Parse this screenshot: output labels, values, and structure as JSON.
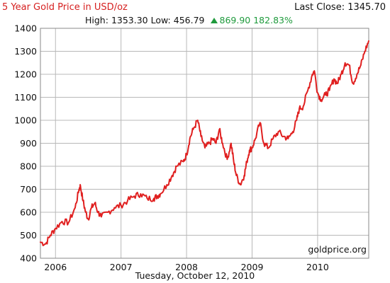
{
  "header": {
    "title": "5 Year Gold Price in USD/oz",
    "last_close_label": "Last Close:",
    "last_close_value": "1345.70",
    "high_label": "High:",
    "high_value": "1353.30",
    "low_label": "Low:",
    "low_value": "456.79",
    "change_value": "869.90",
    "change_percent": "182.83%"
  },
  "footer": {
    "date": "Tuesday, October 12, 2010",
    "watermark": "goldprice.org"
  },
  "colors": {
    "line": "#e02020",
    "title": "#d62020",
    "up": "#1e9a3c",
    "grid": "#b8b8b8"
  },
  "icons": {
    "change": "up-triangle-icon"
  },
  "chart_data": {
    "type": "line",
    "title": "5 Year Gold Price in USD/oz",
    "xlabel": "",
    "ylabel": "",
    "ylim": [
      400,
      1400
    ],
    "xlim": [
      2005.77,
      2010.78
    ],
    "yticks": [
      "400",
      "500",
      "600",
      "700",
      "800",
      "900",
      "1000",
      "1100",
      "1200",
      "1300",
      "1400"
    ],
    "xticks": [
      {
        "label": "2006",
        "x": 2006.0
      },
      {
        "label": "2007",
        "x": 2007.0
      },
      {
        "label": "2008",
        "x": 2008.0
      },
      {
        "label": "2009",
        "x": 2009.0
      },
      {
        "label": "2010",
        "x": 2010.0
      }
    ],
    "grid": true,
    "series": [
      {
        "points": [
          [
            2005.77,
            470
          ],
          [
            2005.85,
            462
          ],
          [
            2005.92,
            500
          ],
          [
            2006.0,
            530
          ],
          [
            2006.1,
            560
          ],
          [
            2006.2,
            555
          ],
          [
            2006.3,
            620
          ],
          [
            2006.36,
            700
          ],
          [
            2006.38,
            715
          ],
          [
            2006.42,
            650
          ],
          [
            2006.46,
            600
          ],
          [
            2006.5,
            570
          ],
          [
            2006.55,
            620
          ],
          [
            2006.6,
            640
          ],
          [
            2006.65,
            600
          ],
          [
            2006.7,
            580
          ],
          [
            2006.8,
            600
          ],
          [
            2006.9,
            620
          ],
          [
            2007.0,
            630
          ],
          [
            2007.1,
            650
          ],
          [
            2007.2,
            670
          ],
          [
            2007.3,
            680
          ],
          [
            2007.4,
            660
          ],
          [
            2007.5,
            660
          ],
          [
            2007.55,
            670
          ],
          [
            2007.6,
            680
          ],
          [
            2007.7,
            720
          ],
          [
            2007.78,
            760
          ],
          [
            2007.85,
            800
          ],
          [
            2007.95,
            820
          ],
          [
            2008.0,
            850
          ],
          [
            2008.05,
            920
          ],
          [
            2008.1,
            960
          ],
          [
            2008.17,
            1000
          ],
          [
            2008.22,
            930
          ],
          [
            2008.28,
            880
          ],
          [
            2008.35,
            900
          ],
          [
            2008.4,
            920
          ],
          [
            2008.45,
            900
          ],
          [
            2008.5,
            960
          ],
          [
            2008.55,
            900
          ],
          [
            2008.62,
            830
          ],
          [
            2008.68,
            900
          ],
          [
            2008.72,
            820
          ],
          [
            2008.76,
            760
          ],
          [
            2008.82,
            720
          ],
          [
            2008.88,
            760
          ],
          [
            2008.92,
            820
          ],
          [
            2008.96,
            870
          ],
          [
            2009.0,
            880
          ],
          [
            2009.05,
            920
          ],
          [
            2009.12,
            990
          ],
          [
            2009.18,
            900
          ],
          [
            2009.25,
            880
          ],
          [
            2009.32,
            920
          ],
          [
            2009.4,
            950
          ],
          [
            2009.48,
            930
          ],
          [
            2009.55,
            920
          ],
          [
            2009.62,
            950
          ],
          [
            2009.68,
            1000
          ],
          [
            2009.72,
            1050
          ],
          [
            2009.78,
            1060
          ],
          [
            2009.85,
            1130
          ],
          [
            2009.92,
            1200
          ],
          [
            2009.95,
            1215
          ],
          [
            2010.0,
            1120
          ],
          [
            2010.05,
            1090
          ],
          [
            2010.12,
            1110
          ],
          [
            2010.18,
            1130
          ],
          [
            2010.25,
            1180
          ],
          [
            2010.3,
            1160
          ],
          [
            2010.36,
            1200
          ],
          [
            2010.42,
            1250
          ],
          [
            2010.48,
            1240
          ],
          [
            2010.54,
            1160
          ],
          [
            2010.6,
            1200
          ],
          [
            2010.66,
            1240
          ],
          [
            2010.72,
            1300
          ],
          [
            2010.78,
            1345
          ]
        ]
      }
    ]
  }
}
